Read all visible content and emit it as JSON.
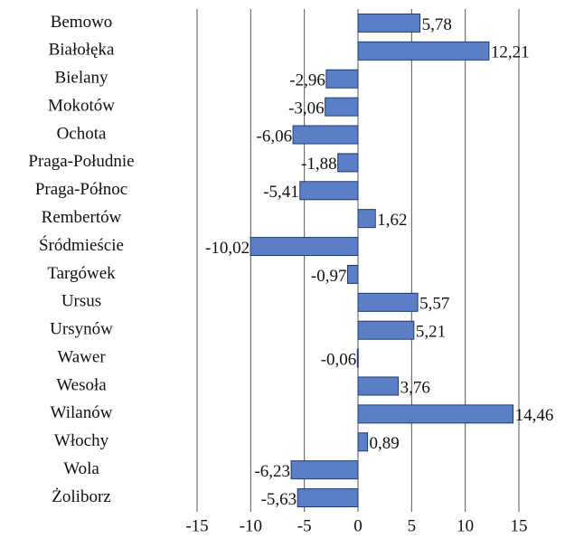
{
  "chart_data": {
    "type": "hbar",
    "categories": [
      "Bemowo",
      "Białołęka",
      "Bielany",
      "Mokotów",
      "Ochota",
      "Praga-Południe",
      "Praga-Północ",
      "Rembertów",
      "Śródmieście",
      "Targówek",
      "Ursus",
      "Ursynów",
      "Wawer",
      "Wesoła",
      "Wilanów",
      "Włochy",
      "Wola",
      "Żoliborz"
    ],
    "values": [
      5.78,
      12.21,
      -2.96,
      -3.06,
      -6.06,
      -1.88,
      -5.41,
      1.62,
      -10.02,
      -0.97,
      5.57,
      5.21,
      -0.06,
      3.76,
      14.46,
      0.89,
      -6.23,
      -5.63
    ],
    "value_labels": [
      "5,78",
      "12,21",
      "-2,96",
      "-3,06",
      "-6,06",
      "-1,88",
      "-5,41",
      "1,62",
      "-10,02",
      "-0,97",
      "5,57",
      "5,21",
      "-0,06",
      "3,76",
      "14,46",
      "0,89",
      "-6,23",
      "-5,63"
    ],
    "color": "#5b7fc7",
    "xlim": [
      -15,
      15
    ],
    "xticks": [
      -15,
      -10,
      -5,
      0,
      5,
      10,
      15
    ],
    "grid": true
  }
}
